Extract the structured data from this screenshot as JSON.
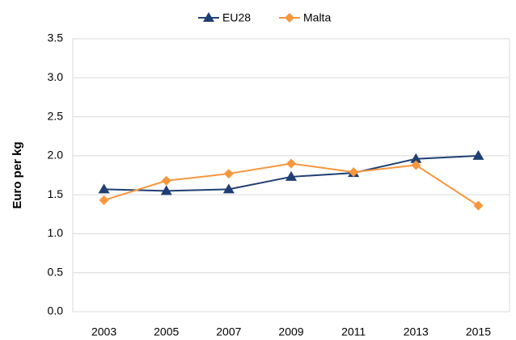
{
  "chart_data": {
    "type": "line",
    "y_label": "Euro per kg",
    "categories": [
      "2003",
      "2005",
      "2007",
      "2009",
      "2011",
      "2013",
      "2015"
    ],
    "series": [
      {
        "name": "EU28",
        "color": "#1f3f72",
        "marker": "triangle",
        "values": [
          1.57,
          1.55,
          1.57,
          1.73,
          1.78,
          1.96,
          2.0
        ]
      },
      {
        "name": "Malta",
        "color": "#f7963c",
        "marker": "diamond",
        "values": [
          1.43,
          1.68,
          1.77,
          1.9,
          1.79,
          1.88,
          1.36
        ]
      }
    ],
    "ylim": [
      0,
      3.5
    ],
    "yticks": [
      {
        "value": 0,
        "label": "0.0"
      },
      {
        "value": 0.5,
        "label": "0.5"
      },
      {
        "value": 1,
        "label": "1.0"
      },
      {
        "value": 1.5,
        "label": "1.5"
      },
      {
        "value": 2,
        "label": "2.0"
      },
      {
        "value": 2.5,
        "label": "2.5"
      },
      {
        "value": 3,
        "label": "3.0"
      },
      {
        "value": 3.5,
        "label": "3.5"
      }
    ],
    "grid": true,
    "legend": "top"
  }
}
